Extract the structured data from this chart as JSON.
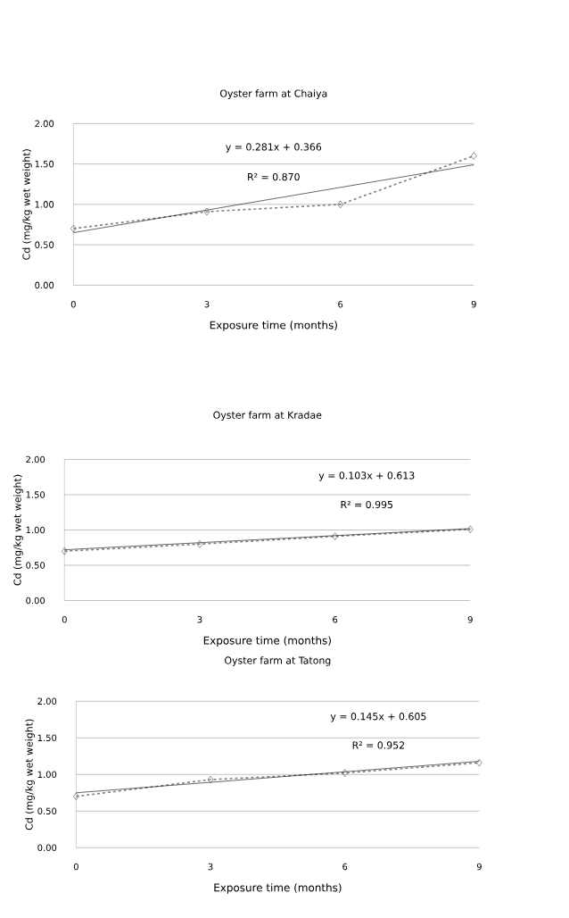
{
  "chart_data": [
    {
      "type": "line",
      "title": "Oyster farm at Chaiya",
      "xlabel": "Exposure time (months)",
      "ylabel": "Cd (mg/kg wet weight)",
      "xlim": [
        0,
        9
      ],
      "xticks": [
        0,
        3,
        6,
        9
      ],
      "ylim": [
        0,
        2
      ],
      "yticks": [
        {
          "value": 0,
          "label": "0.00"
        },
        {
          "value": 0.5,
          "label": "0.50"
        },
        {
          "value": 1,
          "label": "1.00"
        },
        {
          "value": 1.5,
          "label": "1.50"
        },
        {
          "value": 2,
          "label": "2.00"
        }
      ],
      "grid": "y",
      "series": [
        {
          "color": "#808080",
          "x": [
            0,
            3,
            6,
            9
          ],
          "values": [
            0.7,
            0.91,
            1.0,
            1.6
          ],
          "marker": "diamond",
          "line_style": "dashed"
        },
        {
          "color": "#000000",
          "x": [
            0,
            9
          ],
          "values": [
            0.65,
            1.49
          ],
          "marker": "none",
          "line_style": "solid"
        }
      ],
      "annotations": [
        "y = 0.281x + 0.366",
        "R² = 0.870"
      ]
    },
    {
      "type": "line",
      "title": "Oyster farm at Kradae",
      "xlabel": "Exposure time (months)",
      "ylabel": "Cd (mg/kg wet weight)",
      "xlim": [
        0,
        9
      ],
      "xticks": [
        0,
        3,
        6,
        9
      ],
      "ylim": [
        0,
        2
      ],
      "yticks": [
        {
          "value": 0,
          "label": "0.00"
        },
        {
          "value": 0.5,
          "label": "0.50"
        },
        {
          "value": 1,
          "label": "1.00"
        },
        {
          "value": 1.5,
          "label": "1.50"
        },
        {
          "value": 2,
          "label": "2.00"
        }
      ],
      "grid": "y",
      "series": [
        {
          "color": "#808080",
          "x": [
            0,
            3,
            6,
            9
          ],
          "values": [
            0.7,
            0.8,
            0.91,
            1.01
          ],
          "marker": "diamond",
          "line_style": "dashed"
        },
        {
          "color": "#000000",
          "x": [
            0,
            9
          ],
          "values": [
            0.72,
            1.02
          ],
          "marker": "none",
          "line_style": "solid"
        }
      ],
      "annotations": [
        "y = 0.103x + 0.613",
        "R² = 0.995"
      ]
    },
    {
      "type": "line",
      "title": "Oyster farm at Tatong",
      "xlabel": "Exposure time (months)",
      "ylabel": "Cd (mg/kg wet weight)",
      "xlim": [
        0,
        9
      ],
      "xticks": [
        0,
        3,
        6,
        9
      ],
      "ylim": [
        0,
        2
      ],
      "yticks": [
        {
          "value": 0,
          "label": "0.00"
        },
        {
          "value": 0.5,
          "label": "0.50"
        },
        {
          "value": 1,
          "label": "1.00"
        },
        {
          "value": 1.5,
          "label": "1.50"
        },
        {
          "value": 2,
          "label": "2.00"
        }
      ],
      "grid": "y",
      "series": [
        {
          "color": "#808080",
          "x": [
            0,
            3,
            6,
            9
          ],
          "values": [
            0.7,
            0.93,
            1.02,
            1.16
          ],
          "marker": "diamond",
          "line_style": "dashed"
        },
        {
          "color": "#000000",
          "x": [
            0,
            9
          ],
          "values": [
            0.75,
            1.18
          ],
          "marker": "none",
          "line_style": "solid"
        }
      ],
      "annotations": [
        "y = 0.145x + 0.605",
        "R² = 0.952"
      ]
    }
  ]
}
